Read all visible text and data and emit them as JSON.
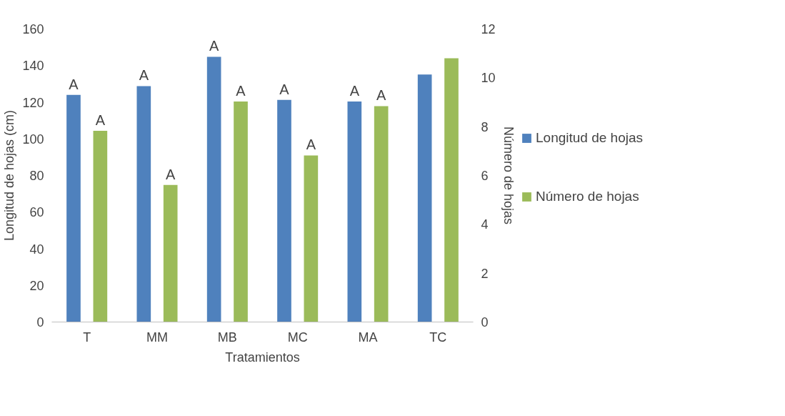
{
  "chart_data": {
    "type": "bar",
    "xlabel": "Tratamientos",
    "ylabel": "Longitud de hojas (cm)",
    "y2label": "Número de hojas",
    "categories": [
      "T",
      "MM",
      "MB",
      "MC",
      "MA",
      "TC"
    ],
    "series": [
      {
        "name": "Longitud de hojas",
        "color": "#4f81bd",
        "values": [
          124,
          128.8,
          144.8,
          121.3,
          120.4,
          135.1
        ]
      },
      {
        "name": "Número de hojas",
        "color": "#9bbb59",
        "axis": "y2",
        "values": [
          7.83,
          5.61,
          9.03,
          6.82,
          8.84,
          10.8
        ]
      }
    ],
    "ylim": [
      0,
      160
    ],
    "yticks": [
      0,
      20,
      40,
      60,
      80,
      100,
      120,
      140,
      160
    ],
    "y2lim": [
      0,
      12
    ],
    "y2ticks": [
      0,
      2,
      4,
      6,
      8,
      10,
      12
    ],
    "annotations": [
      "A",
      "A",
      "A",
      "A",
      "A",
      "A",
      "A",
      "A",
      "A",
      "A"
    ],
    "legend": "right",
    "grid": false
  }
}
